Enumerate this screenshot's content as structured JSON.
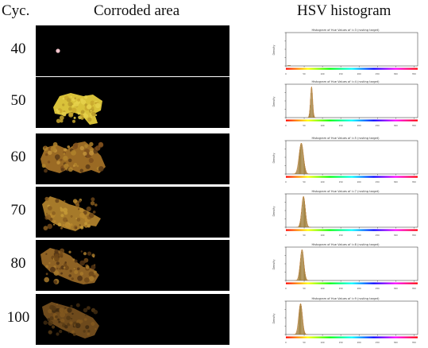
{
  "header": {
    "cycle_label": "Cyc.",
    "corroded_label": "Corroded area",
    "histogram_label": "HSV histogram"
  },
  "rows": [
    {
      "cycle": "40",
      "hist_title": "Histogram of Hue Values of i=3 (rusting target)"
    },
    {
      "cycle": "50",
      "hist_title": "Histogram of Hue Values of i=4 (rusting target)"
    },
    {
      "cycle": "60",
      "hist_title": "Histogram of Hue Values of i=5 (rusting target)"
    },
    {
      "cycle": "70",
      "hist_title": "Histogram of Hue Values of i=7 (rusting target)"
    },
    {
      "cycle": "80",
      "hist_title": "Histogram of Hue Values of i=8 (rusting target)"
    },
    {
      "cycle": "100",
      "hist_title": "Histogram of Hue Values of i=9 (rusting target)"
    }
  ],
  "histogram_axis": {
    "ylabel": "Density",
    "xticks": [
      "0",
      "50",
      "100",
      "150",
      "200",
      "250",
      "300",
      "350"
    ]
  },
  "colors": {
    "panel_background": "#000000",
    "histogram_bar": "#9c7a34",
    "density_curve": "#c2772b"
  }
}
